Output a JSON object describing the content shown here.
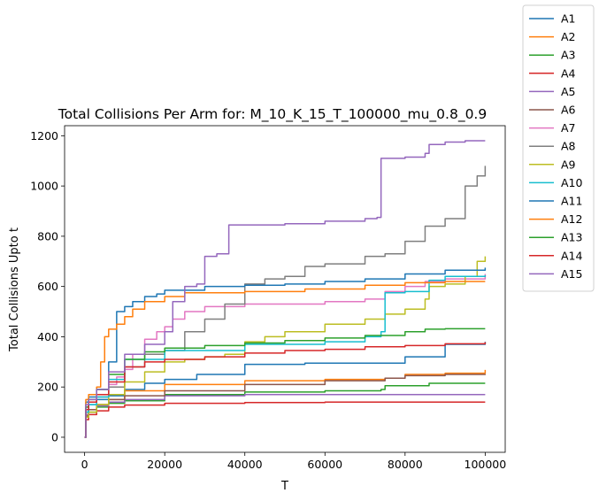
{
  "chart_data": {
    "type": "line",
    "title": "Total Collisions Per Arm for: M_10_K_15_T_100000_mu_0.8_0.9",
    "xlabel": "T",
    "ylabel": "Total Collisions Upto t",
    "xlim": [
      -5000,
      105000
    ],
    "ylim": [
      -60,
      1240
    ],
    "xticks": [
      0,
      20000,
      40000,
      60000,
      80000,
      100000
    ],
    "yticks": [
      0,
      200,
      400,
      600,
      800,
      1000,
      1200
    ],
    "grid": false,
    "legend_position": "outside-top-right",
    "series": [
      {
        "name": "A1",
        "color": "#1f77b4",
        "x": [
          0,
          300,
          1000,
          3000,
          6000,
          10000,
          15000,
          20000,
          28000,
          40000,
          55000,
          70000,
          80000,
          90000,
          100000
        ],
        "y": [
          0,
          100,
          130,
          150,
          165,
          190,
          215,
          230,
          250,
          290,
          295,
          295,
          320,
          370,
          380
        ]
      },
      {
        "name": "A2",
        "color": "#ff7f0e",
        "x": [
          0,
          300,
          1000,
          3000,
          6000,
          10000,
          20000,
          40000,
          60000,
          75000,
          80000,
          90000,
          100000
        ],
        "y": [
          0,
          90,
          110,
          130,
          150,
          185,
          210,
          225,
          230,
          235,
          250,
          255,
          268
        ]
      },
      {
        "name": "A3",
        "color": "#2ca02c",
        "x": [
          0,
          300,
          1000,
          3000,
          6000,
          10000,
          20000,
          40000,
          60000,
          74000,
          75000,
          86000,
          100000
        ],
        "y": [
          0,
          80,
          100,
          120,
          135,
          145,
          170,
          180,
          185,
          190,
          205,
          215,
          215
        ]
      },
      {
        "name": "A4",
        "color": "#d62728",
        "x": [
          0,
          300,
          1000,
          3000,
          6000,
          10000,
          20000,
          40000,
          60000,
          80000,
          100000
        ],
        "y": [
          0,
          70,
          90,
          105,
          120,
          128,
          135,
          138,
          140,
          140,
          140
        ]
      },
      {
        "name": "A5",
        "color": "#9467bd",
        "x": [
          0,
          300,
          1000,
          3000,
          6000,
          10000,
          20000,
          40000,
          60000,
          80000,
          100000
        ],
        "y": [
          0,
          90,
          110,
          125,
          140,
          150,
          165,
          170,
          170,
          170,
          170
        ]
      },
      {
        "name": "A6",
        "color": "#8c564b",
        "x": [
          0,
          300,
          1000,
          3000,
          6000,
          10000,
          20000,
          40000,
          60000,
          75000,
          80000,
          90000,
          100000
        ],
        "y": [
          0,
          85,
          110,
          130,
          150,
          165,
          185,
          210,
          225,
          235,
          245,
          250,
          252
        ]
      },
      {
        "name": "A7",
        "color": "#e377c2",
        "x": [
          0,
          300,
          1000,
          3000,
          6000,
          8000,
          10000,
          12000,
          15000,
          18000,
          20000,
          22000,
          25000,
          30000,
          40000,
          60000,
          70000,
          75000,
          80000,
          85000,
          90000,
          100000
        ],
        "y": [
          0,
          120,
          140,
          170,
          210,
          240,
          270,
          330,
          390,
          420,
          440,
          470,
          500,
          520,
          530,
          540,
          550,
          580,
          600,
          620,
          630,
          650
        ]
      },
      {
        "name": "A8",
        "color": "#7f7f7f",
        "x": [
          0,
          300,
          1000,
          3000,
          6000,
          10000,
          15000,
          20000,
          25000,
          30000,
          35000,
          40000,
          45000,
          50000,
          55000,
          60000,
          70000,
          75000,
          80000,
          85000,
          90000,
          95000,
          98000,
          100000
        ],
        "y": [
          0,
          110,
          140,
          160,
          200,
          280,
          330,
          345,
          420,
          470,
          530,
          610,
          630,
          640,
          680,
          690,
          720,
          730,
          780,
          840,
          870,
          1000,
          1040,
          1080
        ]
      },
      {
        "name": "A9",
        "color": "#bcbd22",
        "x": [
          0,
          300,
          1000,
          3000,
          6000,
          10000,
          15000,
          20000,
          25000,
          30000,
          35000,
          40000,
          45000,
          50000,
          60000,
          70000,
          75000,
          80000,
          85000,
          86000,
          90000,
          95000,
          98000,
          100000
        ],
        "y": [
          0,
          80,
          100,
          130,
          170,
          220,
          260,
          300,
          310,
          320,
          330,
          380,
          400,
          420,
          450,
          470,
          490,
          510,
          550,
          600,
          610,
          640,
          700,
          720
        ]
      },
      {
        "name": "A10",
        "color": "#17becf",
        "x": [
          0,
          300,
          1000,
          3000,
          6000,
          10000,
          20000,
          40000,
          60000,
          70000,
          74000,
          75000,
          80000,
          85000,
          86000,
          90000,
          100000
        ],
        "y": [
          0,
          100,
          130,
          160,
          230,
          310,
          345,
          370,
          380,
          400,
          420,
          575,
          580,
          580,
          625,
          640,
          645
        ]
      },
      {
        "name": "A11",
        "color": "#1f77b4",
        "x": [
          0,
          300,
          1000,
          3000,
          6000,
          8000,
          10000,
          12000,
          15000,
          18000,
          20000,
          30000,
          40000,
          50000,
          60000,
          70000,
          80000,
          90000,
          100000
        ],
        "y": [
          0,
          140,
          160,
          190,
          300,
          500,
          520,
          540,
          560,
          570,
          585,
          600,
          605,
          610,
          620,
          630,
          650,
          665,
          675
        ]
      },
      {
        "name": "A12",
        "color": "#ff7f0e",
        "x": [
          0,
          300,
          1000,
          3000,
          4000,
          5000,
          6000,
          8000,
          10000,
          12000,
          15000,
          20000,
          25000,
          40000,
          55000,
          70000,
          80000,
          90000,
          100000
        ],
        "y": [
          0,
          150,
          170,
          200,
          300,
          400,
          430,
          450,
          480,
          510,
          540,
          560,
          575,
          580,
          590,
          605,
          615,
          620,
          620
        ]
      },
      {
        "name": "A13",
        "color": "#2ca02c",
        "x": [
          0,
          300,
          1000,
          3000,
          6000,
          10000,
          15000,
          20000,
          30000,
          40000,
          50000,
          60000,
          70000,
          80000,
          85000,
          90000,
          100000
        ],
        "y": [
          0,
          120,
          150,
          190,
          250,
          310,
          340,
          355,
          365,
          375,
          385,
          395,
          405,
          420,
          430,
          432,
          432
        ]
      },
      {
        "name": "A14",
        "color": "#d62728",
        "x": [
          0,
          300,
          1000,
          3000,
          6000,
          10000,
          15000,
          20000,
          30000,
          40000,
          50000,
          60000,
          70000,
          80000,
          90000,
          100000
        ],
        "y": [
          0,
          110,
          140,
          170,
          220,
          280,
          300,
          310,
          320,
          335,
          345,
          350,
          360,
          365,
          372,
          378
        ]
      },
      {
        "name": "A15",
        "color": "#9467bd",
        "x": [
          0,
          300,
          1000,
          3000,
          6000,
          10000,
          15000,
          20000,
          22000,
          25000,
          28000,
          30000,
          33000,
          36000,
          40000,
          50000,
          60000,
          70000,
          73000,
          74000,
          80000,
          85000,
          86000,
          90000,
          95000,
          100000
        ],
        "y": [
          0,
          130,
          150,
          190,
          260,
          330,
          370,
          420,
          540,
          600,
          610,
          720,
          730,
          845,
          845,
          850,
          860,
          870,
          875,
          1110,
          1115,
          1130,
          1165,
          1175,
          1180,
          1180
        ]
      }
    ]
  }
}
